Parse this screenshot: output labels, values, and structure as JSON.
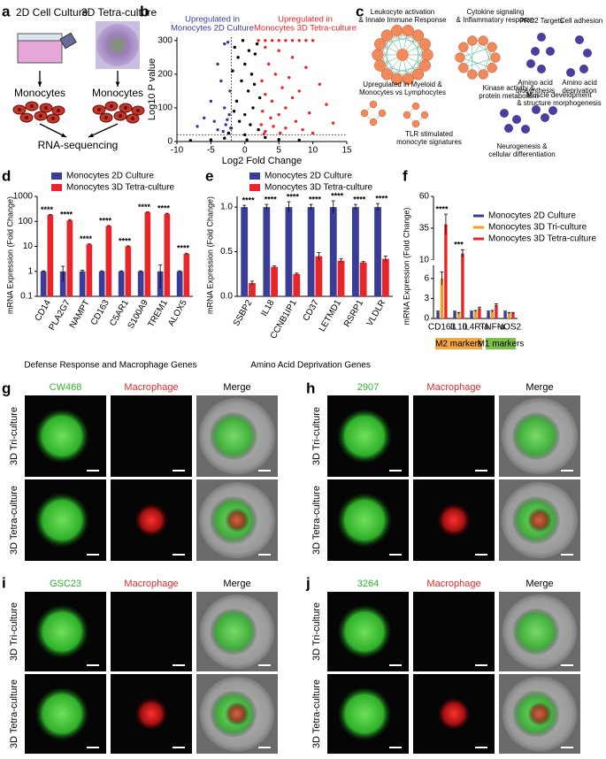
{
  "panel_labels": [
    "a",
    "b",
    "c",
    "d",
    "e",
    "f",
    "g",
    "h",
    "i",
    "j"
  ],
  "schematic": {
    "left_title": "2D Cell Culture",
    "right_title": "3D Tetra-culture",
    "left_cells": "Monocytes",
    "right_cells": "Monocytes",
    "output": "RNA-sequencing"
  },
  "network": {
    "clusters": [
      {
        "label": [
          "Leukocyte activation",
          "& Innate Immune Response"
        ],
        "color": "#f08a5d"
      },
      {
        "label": [
          "Cytokine signaling",
          "& Inflammatory response"
        ],
        "color": "#f08a5d"
      },
      {
        "label": [
          "PRC2 Targets"
        ],
        "color": "#4a3f9e"
      },
      {
        "label": [
          "Cell adhesion"
        ],
        "color": "#4a3f9e"
      },
      {
        "label": [
          "Amino acid",
          "biosynthesis"
        ],
        "color": "#4a3f9e"
      },
      {
        "label": [
          "Amino acid",
          "deprivation"
        ],
        "color": "#4a3f9e"
      },
      {
        "label": [
          "Upregulated in Myeloid &",
          "Monocytes vs Lymphocytes"
        ],
        "color": "#f08a5d"
      },
      {
        "label": [
          "Kinase activity &",
          "protein metabolism"
        ],
        "color": "#4a3f9e"
      },
      {
        "label": [
          "Muscle development",
          "& structure morphogenesis"
        ],
        "color": "#4a3f9e"
      },
      {
        "label": [
          "TLR stimulated",
          "monocyte signatures"
        ],
        "color": "#f08a5d"
      },
      {
        "label": [
          "Neurogenesis &",
          "cellular differentiation"
        ],
        "color": "#4a3f9e"
      }
    ]
  },
  "chart_data": [
    {
      "type": "scatter",
      "xlabel": "Log2 Fold Change",
      "ylabel": "Log10 P value",
      "annotations": [
        {
          "text": [
            "Upregulated in",
            "Monocytes 2D Culture"
          ],
          "color": "#3a3d98"
        },
        {
          "text": [
            "Upregulated in",
            "Monocytes 3D Tetra-culture"
          ],
          "color": "#e8262a"
        }
      ],
      "xlim": [
        -10,
        15
      ],
      "xticks": [
        -10,
        -5,
        0,
        5,
        10,
        15
      ],
      "ylim": [
        0,
        310
      ],
      "yticks": [
        0,
        100,
        200,
        300
      ],
      "reference_lines": {
        "x": -2,
        "y": 20
      },
      "series": [
        {
          "color": "#000000",
          "x": [
            -1.5,
            -1,
            0,
            1,
            1.5,
            -0.5,
            0.5,
            -1.2,
            1.2,
            0,
            -0.8,
            0.8,
            -2,
            2,
            0,
            -3,
            3,
            -5,
            5,
            -8,
            8,
            0.3,
            1.8,
            -1.8,
            0.6,
            -0.3,
            1.4,
            -1.6,
            2.2,
            -2.4
          ],
          "y": [
            280,
            250,
            230,
            200,
            260,
            180,
            150,
            120,
            100,
            80,
            60,
            50,
            40,
            35,
            20,
            10,
            12,
            5,
            6,
            3,
            4,
            5,
            290,
            210,
            270,
            300,
            170,
            90,
            130,
            25
          ]
        },
        {
          "color": "#3a3d98",
          "x": [
            -3,
            -2.5,
            -4,
            -3.5,
            -2.2,
            -5,
            -3,
            -2.3,
            -6,
            -4.5,
            -2.8,
            -2.1,
            -3.2,
            -7,
            -2.6,
            -4
          ],
          "y": [
            290,
            295,
            230,
            180,
            150,
            120,
            100,
            80,
            70,
            60,
            50,
            40,
            30,
            45,
            65,
            35
          ]
        },
        {
          "color": "#e8262a",
          "x": [
            2,
            3,
            4,
            5,
            6,
            7,
            8,
            9,
            10,
            3,
            5,
            7,
            3.5,
            9,
            4.5,
            6.5,
            2.5,
            11,
            5.5,
            8,
            3,
            7,
            4,
            12,
            6,
            2.6,
            9.5,
            5,
            3.8,
            7.5,
            2.4,
            4.2,
            6,
            3,
            8.5,
            13,
            10,
            5.2,
            2.8
          ],
          "y": [
            300,
            300,
            300,
            300,
            300,
            300,
            300,
            300,
            300,
            280,
            270,
            250,
            230,
            220,
            200,
            190,
            180,
            170,
            160,
            150,
            140,
            130,
            120,
            110,
            100,
            90,
            85,
            80,
            70,
            60,
            50,
            45,
            40,
            30,
            35,
            55,
            25,
            25,
            22
          ]
        }
      ]
    },
    {
      "type": "bar",
      "yscale": "log",
      "ylabel": "mRNA Expression (Fold Change)",
      "xlabel": "Defense Response and Macrophage Genes",
      "xtick_rotation": -60,
      "categories": [
        "CD14",
        "PLA2G7",
        "NAMPT",
        "CD163",
        "C5AR1",
        "S100A9",
        "TREM1",
        "ALOX5"
      ],
      "ylim": [
        0.1,
        1000
      ],
      "yticks": [
        0.1,
        1,
        10,
        100,
        1000
      ],
      "series": [
        {
          "name": "Monocytes 2D Culture",
          "color": "#3a3d98",
          "values": [
            1,
            1,
            1,
            1,
            1,
            1,
            1,
            1
          ],
          "errors": [
            0.05,
            0.6,
            0.1,
            0.05,
            0.05,
            0.05,
            0.8,
            0.05
          ]
        },
        {
          "name": "Monocytes 3D Tetra-culture",
          "color": "#e8262a",
          "values": [
            180,
            110,
            12,
            65,
            10,
            230,
            200,
            5
          ],
          "errors": [
            10,
            8,
            0.5,
            3,
            0.5,
            10,
            10,
            0.3
          ]
        }
      ],
      "significance": [
        "****",
        "****",
        "****",
        "****",
        "****",
        "****",
        "****",
        "****"
      ]
    },
    {
      "type": "bar",
      "ylabel": "mRNA Expression (Fold Change)",
      "xlabel": "Amino Acid Deprivation Genes",
      "xtick_rotation": -60,
      "categories": [
        "SSBP2",
        "IL18",
        "CCNB1IP1",
        "CD37",
        "LETMD1",
        "RSRP1",
        "VLDLR"
      ],
      "ylim": [
        0,
        1.12
      ],
      "yticks": [
        {
          "value": 0,
          "label": "0.0"
        },
        {
          "value": 0.5,
          "label": "0.5"
        },
        {
          "value": 1,
          "label": "1.0"
        }
      ],
      "series": [
        {
          "name": "Monocytes 2D Culture",
          "color": "#3a3d98",
          "values": [
            1,
            1,
            1,
            1,
            1,
            1,
            1
          ],
          "errors": [
            0.02,
            0.03,
            0.06,
            0.03,
            0.07,
            0.03,
            0.04
          ]
        },
        {
          "name": "Monocytes 3D Tetra-culture",
          "color": "#e8262a",
          "values": [
            0.15,
            0.33,
            0.25,
            0.45,
            0.4,
            0.38,
            0.42
          ],
          "errors": [
            0.02,
            0.01,
            0.01,
            0.04,
            0.02,
            0.01,
            0.03
          ]
        }
      ],
      "significance": [
        "****",
        "****",
        "****",
        "****",
        "****",
        "****",
        "****"
      ]
    },
    {
      "type": "bar",
      "ylabel": "mRNA Expression (Fold Change)",
      "categories": [
        "CD163",
        "IL10",
        "IL4R-a",
        "TNF-a",
        "NOS2"
      ],
      "ylim": [
        0,
        60
      ],
      "ybreak": [
        8,
        10
      ],
      "yticks": [
        0,
        3,
        6,
        10,
        35,
        60
      ],
      "series": [
        {
          "name": "Monocytes 2D Culture",
          "color": "#3a3d98",
          "values": [
            1,
            1,
            1,
            1,
            1
          ],
          "errors": [
            0.1,
            0.1,
            0.1,
            0.1,
            0.1
          ]
        },
        {
          "name": "Monocytes 3D Tri-culture",
          "color": "#f39c1f",
          "values": [
            6,
            0.8,
            1.1,
            1.1,
            0.8
          ],
          "errors": [
            1,
            0.1,
            0.1,
            0.1,
            0.1
          ]
        },
        {
          "name": "Monocytes 3D Tetra-culture",
          "color": "#e8262a",
          "values": [
            38,
            15,
            1.5,
            2,
            0.8
          ],
          "errors": [
            8,
            3,
            0.2,
            0.2,
            0.1
          ]
        }
      ],
      "significance": [
        "****",
        "***",
        null,
        null,
        null
      ],
      "groups": [
        {
          "label": "M2 markers",
          "color": "#f5a742",
          "members": [
            "CD163",
            "IL10",
            "IL4R-a"
          ]
        },
        {
          "label": "M1 markers",
          "color": "#7cc242",
          "members": [
            "TNF-a",
            "NOS2"
          ]
        }
      ]
    }
  ],
  "micrographs": [
    {
      "stain": "CW468",
      "macrophage": "Macrophage",
      "merge": "Merge",
      "rows": [
        "3D Tri-culture",
        "3D Tetra-culture"
      ]
    },
    {
      "stain": "2907",
      "macrophage": "Macrophage",
      "merge": "Merge",
      "rows": [
        "3D Tri-culture",
        "3D Tetra-culture"
      ]
    },
    {
      "stain": "GSC23",
      "macrophage": "Macrophage",
      "merge": "Merge",
      "rows": [
        "3D Tri-culture",
        "3D Tetra-culture"
      ]
    },
    {
      "stain": "3264",
      "macrophage": "Macrophage",
      "merge": "Merge",
      "rows": [
        "3D Tri-culture",
        "3D Tetra-culture"
      ]
    }
  ]
}
